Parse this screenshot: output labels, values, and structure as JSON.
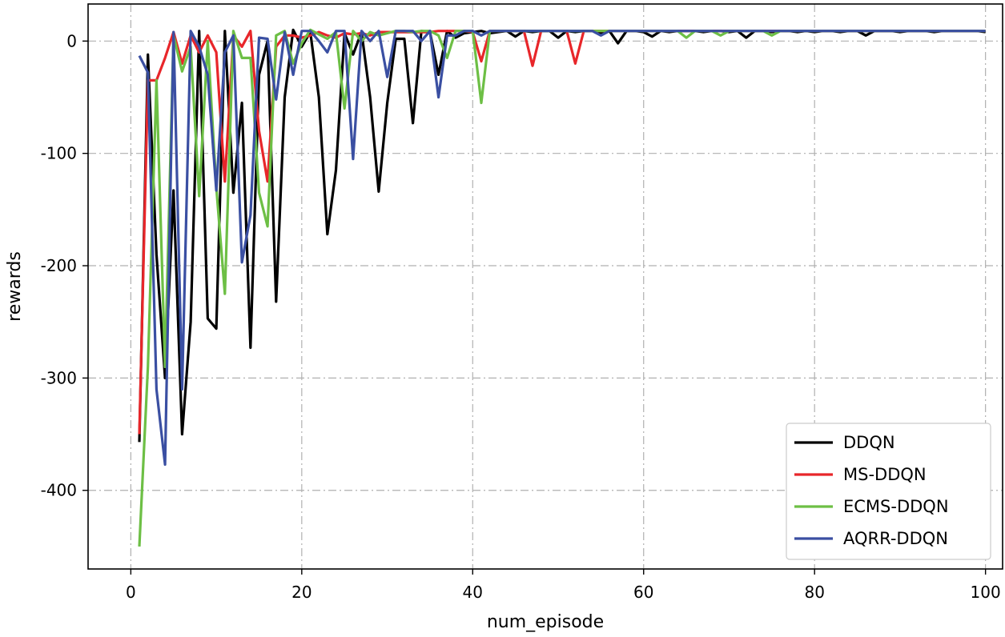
{
  "chart_data": {
    "type": "line",
    "title": "",
    "xlabel": "num_episode",
    "ylabel": "rewards",
    "xlim": [
      -5,
      102
    ],
    "ylim": [
      -470,
      33
    ],
    "xticks": [
      0,
      20,
      40,
      60,
      80,
      100
    ],
    "yticks": [
      0,
      -100,
      -200,
      -300,
      -400
    ],
    "grid": true,
    "legend_position": "bottom-right",
    "series": [
      {
        "name": "DDQN",
        "color": "#000000",
        "x": [
          1,
          2,
          3,
          4,
          5,
          6,
          7,
          8,
          9,
          10,
          11,
          12,
          13,
          14,
          15,
          16,
          17,
          18,
          19,
          20,
          21,
          22,
          23,
          24,
          25,
          26,
          27,
          28,
          29,
          30,
          31,
          32,
          33,
          34,
          35,
          36,
          37,
          38,
          39,
          40,
          41,
          42,
          43,
          44,
          45,
          46,
          47,
          48,
          49,
          50,
          51,
          52,
          53,
          54,
          55,
          56,
          57,
          58,
          59,
          60,
          61,
          62,
          63,
          64,
          65,
          66,
          67,
          68,
          69,
          70,
          71,
          72,
          73,
          74,
          75,
          76,
          77,
          78,
          79,
          80,
          81,
          82,
          83,
          84,
          85,
          86,
          87,
          88,
          89,
          90,
          91,
          92,
          93,
          94,
          95,
          96,
          97,
          98,
          99,
          100
        ],
        "y": [
          -357,
          -12,
          -190,
          -300,
          -133,
          -350,
          -250,
          9,
          -247,
          -256,
          9,
          -135,
          -55,
          -273,
          -30,
          0,
          -232,
          -50,
          10,
          -5,
          8,
          -50,
          -172,
          -115,
          7,
          -12,
          8,
          -50,
          -134,
          -55,
          2,
          2,
          -73,
          9,
          8,
          -30,
          9,
          3,
          7,
          8,
          9,
          7,
          8,
          9,
          4,
          9,
          8,
          9,
          9,
          3,
          9,
          8,
          9,
          9,
          7,
          9,
          -2,
          9,
          9,
          8,
          4,
          9,
          8,
          9,
          9,
          9,
          8,
          9,
          9,
          8,
          9,
          3,
          9,
          9,
          8,
          9,
          9,
          8,
          9,
          8,
          9,
          9,
          8,
          9,
          9,
          5,
          9,
          9,
          9,
          8,
          9,
          9,
          9,
          8,
          9,
          9,
          9,
          9,
          9,
          8
        ]
      },
      {
        "name": "MS-DDQN",
        "color": "#e8262a",
        "x": [
          1,
          2,
          3,
          4,
          5,
          6,
          7,
          8,
          9,
          10,
          11,
          12,
          13,
          14,
          15,
          16,
          17,
          18,
          19,
          20,
          21,
          22,
          23,
          24,
          25,
          26,
          27,
          28,
          29,
          30,
          31,
          32,
          33,
          34,
          35,
          36,
          37,
          38,
          39,
          40,
          41,
          42,
          43,
          44,
          45,
          46,
          47,
          48,
          49,
          50,
          51,
          52,
          53,
          54,
          55,
          56,
          57,
          58,
          59,
          60,
          61,
          62,
          63,
          64,
          65,
          66,
          67,
          68,
          69,
          70,
          71,
          72,
          73,
          74,
          75,
          76,
          77,
          78,
          79,
          80,
          81,
          82,
          83,
          84,
          85,
          86,
          87,
          88,
          89,
          90,
          91,
          92,
          93,
          94,
          95,
          96,
          97,
          98,
          99,
          100
        ],
        "y": [
          -350,
          -35,
          -35,
          -15,
          8,
          -20,
          5,
          -10,
          5,
          -10,
          -125,
          5,
          -5,
          9,
          -80,
          -125,
          -5,
          5,
          5,
          3,
          5,
          8,
          5,
          3,
          7,
          6,
          7,
          5,
          8,
          8,
          8,
          8,
          8,
          8,
          8,
          9,
          9,
          9,
          9,
          8,
          -18,
          9,
          9,
          9,
          9,
          9,
          -22,
          9,
          9,
          9,
          9,
          -20,
          9,
          9,
          9,
          9,
          9,
          9,
          9,
          9,
          9,
          9,
          9,
          9,
          9,
          9,
          9,
          9,
          9,
          9,
          9,
          9,
          9,
          9,
          9,
          9,
          9,
          9,
          9,
          9,
          9,
          9,
          9,
          9,
          9,
          9,
          9,
          9,
          9,
          9,
          9,
          9,
          9,
          9,
          9,
          9,
          9,
          9,
          9,
          9
        ]
      },
      {
        "name": "ECMS-DDQN",
        "color": "#6dbf45",
        "x": [
          1,
          2,
          3,
          4,
          5,
          6,
          7,
          8,
          9,
          10,
          11,
          12,
          13,
          14,
          15,
          16,
          17,
          18,
          19,
          20,
          21,
          22,
          23,
          24,
          25,
          26,
          27,
          28,
          29,
          30,
          31,
          32,
          33,
          34,
          35,
          36,
          37,
          38,
          39,
          40,
          41,
          42,
          43,
          44,
          45,
          46,
          47,
          48,
          49,
          50,
          51,
          52,
          53,
          54,
          55,
          56,
          57,
          58,
          59,
          60,
          61,
          62,
          63,
          64,
          65,
          66,
          67,
          68,
          69,
          70,
          71,
          72,
          73,
          74,
          75,
          76,
          77,
          78,
          79,
          80,
          81,
          82,
          83,
          84,
          85,
          86,
          87,
          88,
          89,
          90,
          91,
          92,
          93,
          94,
          95,
          96,
          97,
          98,
          99,
          100
        ],
        "y": [
          -450,
          -290,
          -35,
          -290,
          5,
          -27,
          -5,
          -138,
          0,
          -130,
          -225,
          9,
          -15,
          -15,
          -135,
          -165,
          5,
          9,
          -20,
          -2,
          10,
          6,
          2,
          8,
          -60,
          9,
          0,
          8,
          5,
          7,
          9,
          9,
          8,
          9,
          9,
          5,
          -15,
          9,
          9,
          9,
          -55,
          9,
          9,
          9,
          9,
          9,
          9,
          9,
          9,
          9,
          9,
          9,
          9,
          9,
          9,
          9,
          9,
          9,
          9,
          9,
          9,
          9,
          9,
          9,
          3,
          9,
          9,
          9,
          5,
          9,
          9,
          9,
          9,
          9,
          5,
          9,
          9,
          9,
          9,
          9,
          9,
          9,
          9,
          9,
          9,
          9,
          9,
          9,
          9,
          9,
          9,
          9,
          9,
          9,
          9,
          9,
          9,
          9,
          9,
          9
        ]
      },
      {
        "name": "AQRR-DDQN",
        "color": "#3a4fa2",
        "x": [
          1,
          2,
          3,
          4,
          5,
          6,
          7,
          8,
          9,
          10,
          11,
          12,
          13,
          14,
          15,
          16,
          17,
          18,
          19,
          20,
          21,
          22,
          23,
          24,
          25,
          26,
          27,
          28,
          29,
          30,
          31,
          32,
          33,
          34,
          35,
          36,
          37,
          38,
          39,
          40,
          41,
          42,
          43,
          44,
          45,
          46,
          47,
          48,
          49,
          50,
          51,
          52,
          53,
          54,
          55,
          56,
          57,
          58,
          59,
          60,
          61,
          62,
          63,
          64,
          65,
          66,
          67,
          68,
          69,
          70,
          71,
          72,
          73,
          74,
          75,
          76,
          77,
          78,
          79,
          80,
          81,
          82,
          83,
          84,
          85,
          86,
          87,
          88,
          89,
          90,
          91,
          92,
          93,
          94,
          95,
          96,
          97,
          98,
          99,
          100
        ],
        "y": [
          -13,
          -28,
          -310,
          -377,
          8,
          -310,
          9,
          -5,
          -30,
          -133,
          -10,
          5,
          -197,
          -155,
          3,
          2,
          -52,
          8,
          -30,
          9,
          9,
          0,
          -10,
          9,
          9,
          -105,
          9,
          0,
          9,
          -32,
          9,
          9,
          9,
          0,
          9,
          -50,
          5,
          5,
          9,
          9,
          5,
          9,
          9,
          9,
          9,
          9,
          9,
          9,
          9,
          9,
          9,
          9,
          9,
          9,
          5,
          9,
          9,
          9,
          9,
          9,
          9,
          9,
          9,
          9,
          9,
          9,
          9,
          9,
          9,
          9,
          9,
          9,
          9,
          9,
          9,
          9,
          9,
          9,
          9,
          9,
          9,
          9,
          9,
          9,
          9,
          9,
          9,
          9,
          9,
          9,
          9,
          9,
          9,
          9,
          9,
          9,
          9,
          9,
          9,
          9
        ]
      }
    ]
  }
}
